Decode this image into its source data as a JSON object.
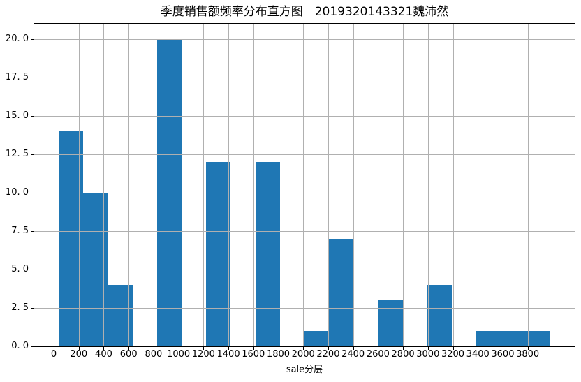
{
  "chart_data": {
    "type": "bar",
    "subtype": "histogram",
    "title": "季度销售额频率分布直方图　2019320143321魏沛然",
    "xlabel": "sale分层",
    "ylabel": "",
    "bin_edges": [
      40,
      237,
      434,
      631,
      828,
      1025,
      1222,
      1419,
      1616,
      1813,
      2010,
      2207,
      2404,
      2601,
      2798,
      2995,
      3192,
      3389,
      3586,
      3783,
      3980
    ],
    "counts": [
      14,
      10,
      4,
      0,
      20,
      0,
      12,
      0,
      12,
      0,
      1,
      7,
      0,
      3,
      0,
      4,
      0,
      1,
      1,
      1
    ],
    "xlim": [
      -157,
      4177
    ],
    "ylim": [
      0,
      21
    ],
    "x_ticks": [
      0,
      200,
      400,
      600,
      800,
      1000,
      1200,
      1400,
      1600,
      1800,
      2000,
      2200,
      2400,
      2600,
      2800,
      3000,
      3200,
      3400,
      3600,
      3800
    ],
    "x_tick_labels": [
      "0",
      "200",
      "400",
      "600",
      "800",
      "1000",
      "1200",
      "1400",
      "1600",
      "1800",
      "2000",
      "2200",
      "2400",
      "2600",
      "2800",
      "3000",
      "3200",
      "3400",
      "3600",
      "3800"
    ],
    "y_ticks": [
      0,
      2.5,
      5,
      7.5,
      10,
      12.5,
      15,
      17.5,
      20
    ],
    "y_tick_labels": [
      "0. 0",
      "2. 5",
      "5. 0",
      "7. 5",
      "10. 0",
      "12. 5",
      "15. 0",
      "17. 5",
      "20. 0"
    ],
    "grid": true,
    "grid_above_bars": true,
    "legend": "none",
    "colors": {
      "bar": "#1f77b4",
      "grid": "#b0b0b0",
      "spine": "#000000",
      "text": "#000000",
      "background": "#ffffff"
    }
  }
}
